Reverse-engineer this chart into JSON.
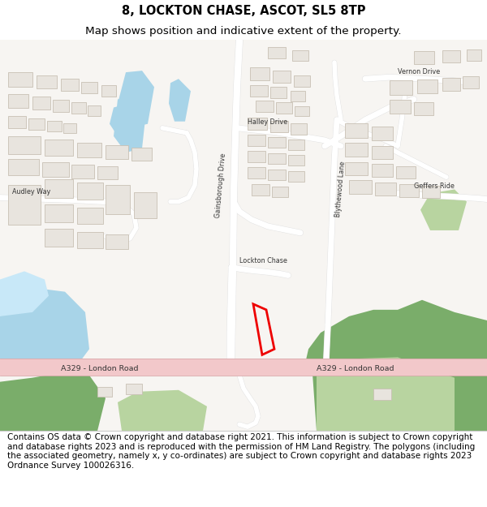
{
  "title_line1": "8, LOCKTON CHASE, ASCOT, SL5 8TP",
  "title_line2": "Map shows position and indicative extent of the property.",
  "footer_text": "Contains OS data © Crown copyright and database right 2021. This information is subject to Crown copyright and database rights 2023 and is reproduced with the permission of HM Land Registry. The polygons (including the associated geometry, namely x, y co-ordinates) are subject to Crown copyright and database rights 2023 Ordnance Survey 100026316.",
  "title_fontsize": 10.5,
  "footer_fontsize": 7.5,
  "map_bg": "#f7f5f2",
  "road_color_main": "#f2c8ca",
  "road_color_minor": "#ffffff",
  "road_edge": "#e0e0e0",
  "building_color": "#e8e4de",
  "building_edge": "#c8c0b4",
  "green_dark": "#7aad6a",
  "green_light": "#b8d4a0",
  "water_blue": "#a8d4e8",
  "water_light": "#c8e8f8",
  "highlight_color": "#ee0000",
  "text_color": "#333333",
  "footer_bg": "#ffffff",
  "title_bg": "#ffffff"
}
